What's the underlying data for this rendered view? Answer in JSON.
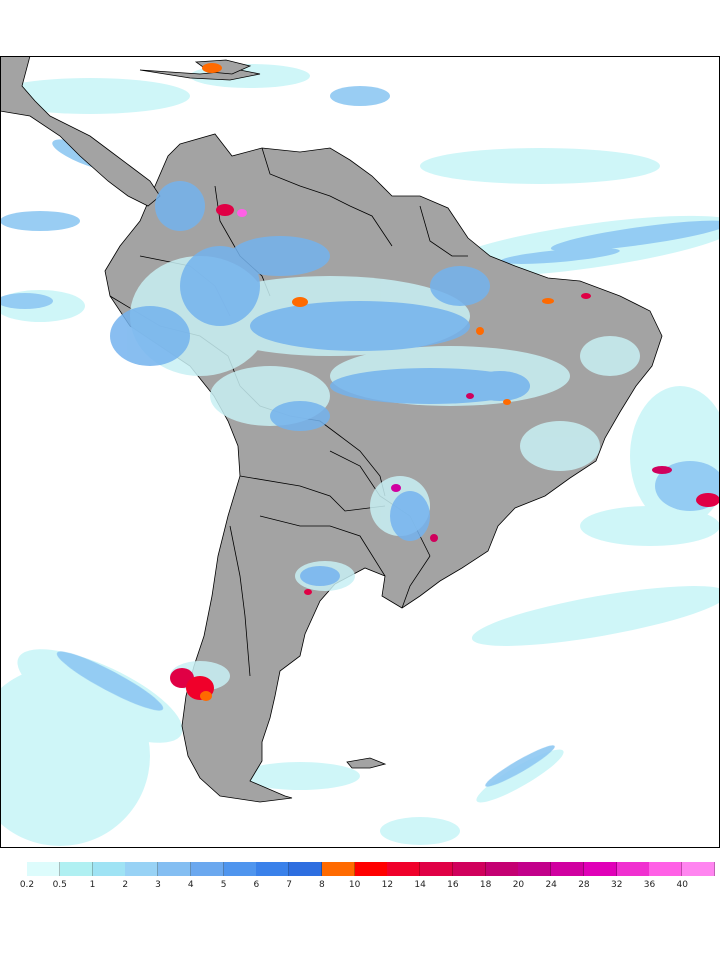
{
  "map": {
    "background_ocean": "#ffffff",
    "land_color": "#a3a3a3",
    "border_color": "#000000"
  },
  "legend": {
    "labels": [
      "0.2",
      "0.5",
      "1",
      "2",
      "3",
      "4",
      "5",
      "6",
      "7",
      "8",
      "10",
      "12",
      "14",
      "16",
      "18",
      "20",
      "24",
      "28",
      "32",
      "36",
      "40"
    ],
    "colors": [
      "#ddfcfc",
      "#b0f0f2",
      "#9fe3f4",
      "#98d2f5",
      "#84bef2",
      "#6ba8ef",
      "#4f95ee",
      "#3a81ea",
      "#2e6ee0",
      "#ff6a00",
      "#ff0000",
      "#f0002a",
      "#e00045",
      "#d0005c",
      "#c40072",
      "#c2008a",
      "#d000a0",
      "#e000b8",
      "#f030d0",
      "#ff60e6",
      "#ff85f0"
    ]
  }
}
